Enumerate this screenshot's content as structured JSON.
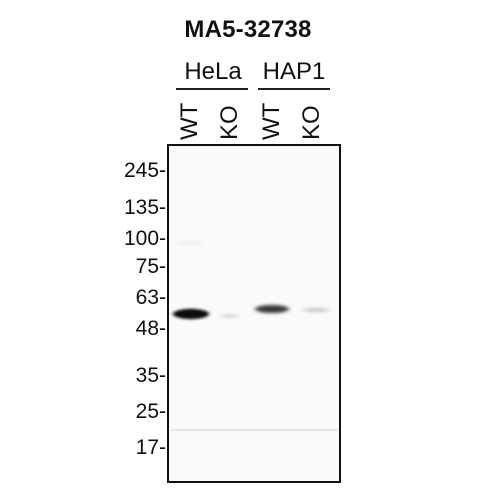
{
  "title": "MA5-32738",
  "cell_lines": [
    {
      "name": "HeLa",
      "lanes": [
        "WT",
        "KO"
      ]
    },
    {
      "name": "HAP1",
      "lanes": [
        "WT",
        "KO"
      ]
    }
  ],
  "markers": [
    "245-",
    "135-",
    "100-",
    "75-",
    "63-",
    "48-",
    "35-",
    "25-",
    "17-"
  ]
}
